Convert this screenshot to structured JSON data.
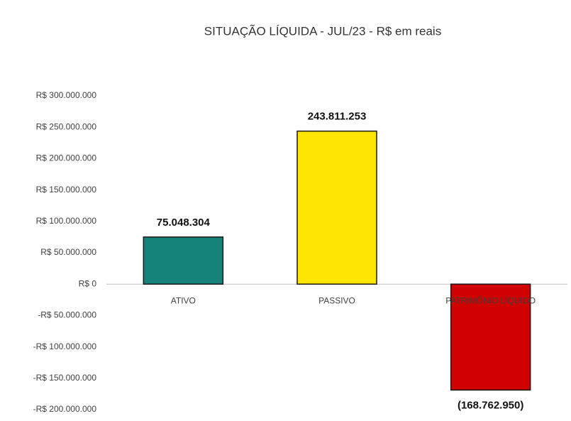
{
  "chart_data": {
    "type": "bar",
    "title": "SITUAÇÃO LÍQUIDA -  JUL/23 - R$ em reais",
    "categories": [
      "ATIVO",
      "PASSIVO",
      "PATRIMÔNIO LÍQUIDO"
    ],
    "values": [
      75048304,
      243811253,
      -168762950
    ],
    "value_labels": [
      "75.048.304",
      "243.811.253",
      "(168.762.950)"
    ],
    "colors": [
      "#17827a",
      "#ffe600",
      "#d00000"
    ],
    "ylim": [
      -200000000,
      300000000
    ],
    "yticks": [
      {
        "value": -200000000,
        "label": "-R$ 200.000.000"
      },
      {
        "value": -150000000,
        "label": "-R$ 150.000.000"
      },
      {
        "value": -100000000,
        "label": "-R$ 100.000.000"
      },
      {
        "value": -50000000,
        "label": "-R$ 50.000.000"
      },
      {
        "value": 0,
        "label": "R$ 0"
      },
      {
        "value": 50000000,
        "label": "R$ 50.000.000"
      },
      {
        "value": 100000000,
        "label": "R$ 100.000.000"
      },
      {
        "value": 150000000,
        "label": "R$ 150.000.000"
      },
      {
        "value": 200000000,
        "label": "R$ 200.000.000"
      },
      {
        "value": 250000000,
        "label": "R$ 250.000.000"
      },
      {
        "value": 300000000,
        "label": "R$ 300.000.000"
      }
    ],
    "grid": false
  }
}
